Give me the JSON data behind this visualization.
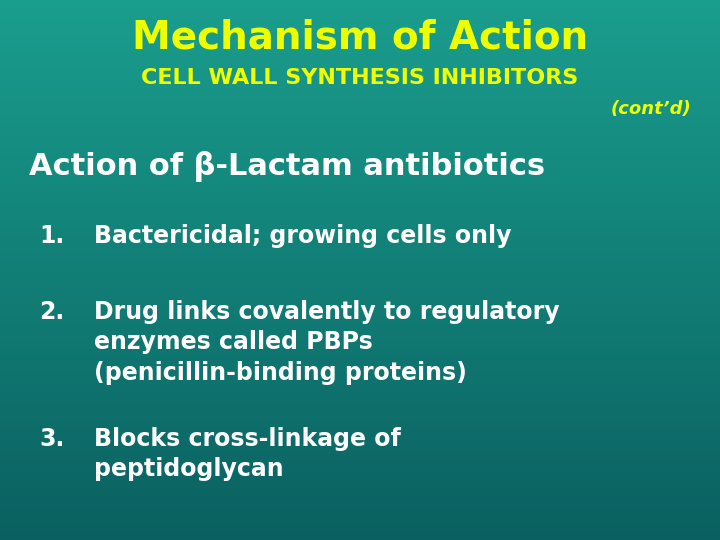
{
  "bg_color_top": "#1a9e8e",
  "bg_color_bottom": "#0a6060",
  "title_line1": "Mechanism of Action",
  "title_line2": "CELL WALL SYNTHESIS INHIBITORS",
  "cont_d": "(cont’d)",
  "subtitle": "Action of β-Lactam antibiotics",
  "items": [
    "Bactericidal; growing cells only",
    "Drug links covalently to regulatory\nenzymes called PBPs\n(penicillin-binding proteins)",
    "Blocks cross-linkage of\npeptidoglycan"
  ],
  "title_color": "#eeff00",
  "cont_color": "#eeff00",
  "subtitle_color": "#ffffff",
  "item_color": "#ffffff",
  "title_fontsize": 28,
  "subtitle_fontsize": 22,
  "title2_fontsize": 16,
  "item_fontsize": 17,
  "cont_fontsize": 13
}
